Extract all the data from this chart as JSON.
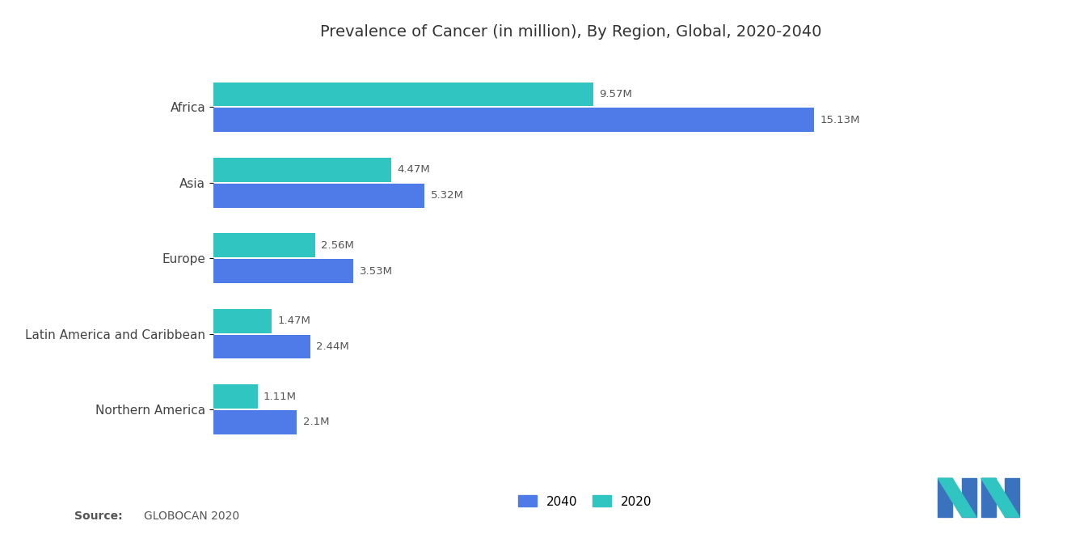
{
  "title": "Prevalence of Cancer (in million), By Region, Global, 2020-2040",
  "regions": [
    "Africa",
    "Asia",
    "Europe",
    "Latin America and Caribbean",
    "Northern America"
  ],
  "values_2040": [
    15.13,
    5.32,
    3.53,
    2.44,
    2.1
  ],
  "values_2020": [
    9.57,
    4.47,
    2.56,
    1.47,
    1.11
  ],
  "labels_2040": [
    "15.13M",
    "5.32M",
    "3.53M",
    "2.44M",
    "2.1M"
  ],
  "labels_2020": [
    "9.57M",
    "4.47M",
    "2.56M",
    "1.47M",
    "1.11M"
  ],
  "color_2040": "#4F7BE8",
  "color_2020": "#30C5C0",
  "background_color": "#FFFFFF",
  "xlim": [
    0,
    18
  ],
  "bar_height": 0.32,
  "bar_gap": 0.02,
  "legend_labels": [
    "2040",
    "2020"
  ],
  "title_fontsize": 14,
  "label_fontsize": 9.5,
  "ytick_fontsize": 11
}
